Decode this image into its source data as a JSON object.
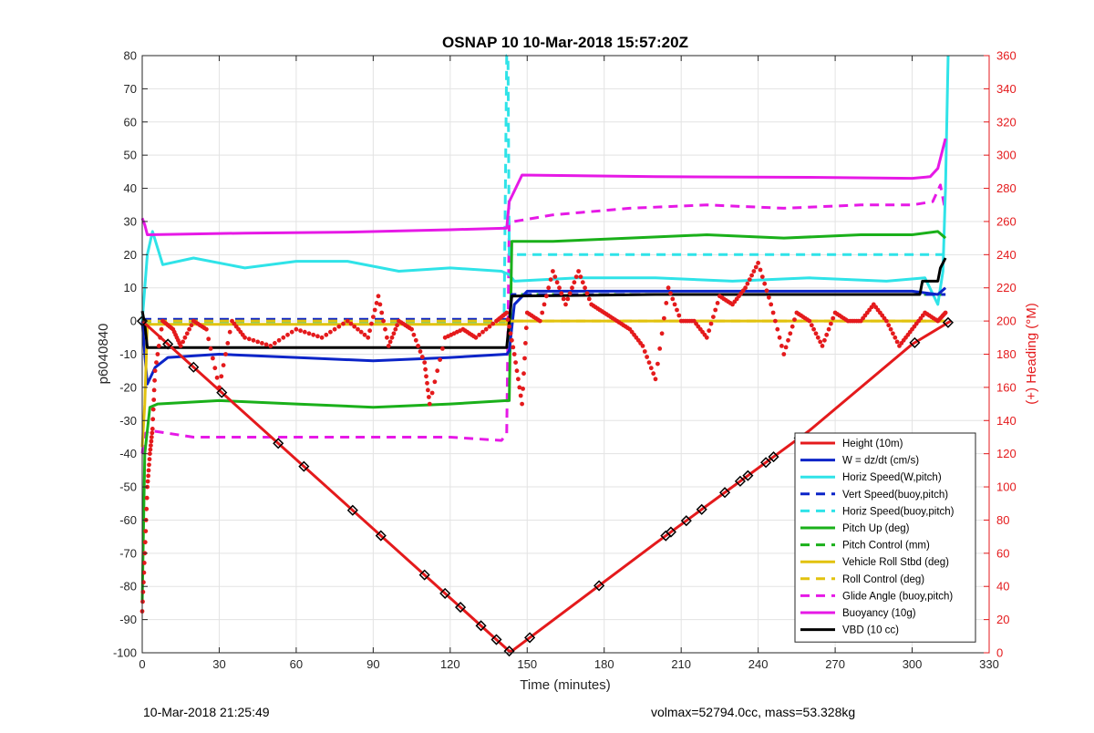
{
  "chart_data": {
    "type": "line",
    "title": "OSNAP 10 10-Mar-2018 15:57:20Z",
    "xlabel": "Time (minutes)",
    "ylabel": "p6040840",
    "y2label": "(+) Heading (°M)",
    "xlim": [
      0,
      330
    ],
    "ylim": [
      -100,
      80
    ],
    "y2lim": [
      0,
      360
    ],
    "xticks": [
      0,
      30,
      60,
      90,
      120,
      150,
      180,
      210,
      240,
      270,
      300,
      330
    ],
    "yticks": [
      -100,
      -90,
      -80,
      -70,
      -60,
      -50,
      -40,
      -30,
      -20,
      -10,
      0,
      10,
      20,
      30,
      40,
      50,
      60,
      70,
      80
    ],
    "y2ticks": [
      0,
      20,
      40,
      60,
      80,
      100,
      120,
      140,
      160,
      180,
      200,
      220,
      240,
      260,
      280,
      300,
      320,
      340,
      360
    ],
    "grid": true,
    "legend_position": "bottom-right",
    "series": [
      {
        "name": "Height (10m)",
        "color": "#e41a1c",
        "style": "solid",
        "x": [
          0,
          143,
          144,
          200,
          260,
          300,
          315
        ],
        "y": [
          0,
          -99.5,
          -99.5,
          -67,
          -33,
          -7,
          0
        ]
      },
      {
        "name": "W = dz/dt (cm/s)",
        "color": "#0b24c8",
        "style": "solid",
        "x": [
          0,
          1,
          2,
          5,
          10,
          30,
          60,
          90,
          120,
          142,
          143,
          145,
          150,
          170,
          200,
          240,
          280,
          300,
          310,
          313
        ],
        "y": [
          0,
          -10,
          -19,
          -14,
          -11,
          -10,
          -11,
          -12,
          -11,
          -10,
          -9,
          5,
          9,
          9,
          9,
          9,
          9,
          9,
          8,
          10
        ]
      },
      {
        "name": "Horiz Speed(W,pitch)",
        "color": "#2fe3e8",
        "style": "solid",
        "x": [
          0,
          2,
          4,
          8,
          20,
          40,
          60,
          80,
          100,
          120,
          140,
          143,
          145,
          170,
          200,
          230,
          260,
          290,
          305,
          310,
          312,
          313,
          314
        ],
        "y": [
          0,
          20,
          27,
          17,
          19,
          16,
          18,
          18,
          15,
          16,
          15,
          14,
          12,
          13,
          13,
          12,
          13,
          12,
          13,
          5,
          15,
          40,
          80
        ]
      },
      {
        "name": "Vert Speed(buoy,pitch)",
        "color": "#0b24c8",
        "style": "dashed",
        "x": [
          0,
          143,
          144,
          313
        ],
        "y": [
          0.5,
          0.5,
          8,
          8
        ]
      },
      {
        "name": "Horiz Speed(buoy,pitch)",
        "color": "#2fe3e8",
        "style": "dashed",
        "x": [
          0,
          141,
          142,
          142.5,
          143,
          313
        ],
        "y": [
          -0.5,
          -0.5,
          80,
          80,
          20,
          20
        ]
      },
      {
        "name": "Pitch Up (deg)",
        "color": "#1ab01a",
        "style": "solid",
        "x": [
          0,
          1,
          3,
          6,
          30,
          60,
          90,
          120,
          142,
          143,
          144,
          160,
          190,
          220,
          250,
          280,
          300,
          310,
          313
        ],
        "y": [
          -85,
          -40,
          -26,
          -25,
          -24,
          -25,
          -26,
          -25,
          -24,
          -24,
          24,
          24,
          25,
          26,
          25,
          26,
          26,
          27,
          25
        ]
      },
      {
        "name": "Pitch Control (mm)",
        "color": "#1ab01a",
        "style": "dashed",
        "x": [
          0,
          143,
          144,
          313
        ],
        "y": [
          0,
          0,
          8,
          8
        ]
      },
      {
        "name": "Vehicle Roll Stbd (deg)",
        "color": "#e2c20e",
        "style": "solid",
        "x": [
          0,
          1,
          2,
          5,
          15,
          30,
          60,
          90,
          120,
          142,
          143,
          150,
          180,
          210,
          240,
          270,
          300,
          313
        ],
        "y": [
          -38,
          -25,
          -1,
          -1,
          -1,
          -1,
          -1,
          -1,
          -1,
          -1,
          0,
          0,
          0,
          0,
          0,
          0,
          0,
          0
        ]
      },
      {
        "name": "Roll Control (deg)",
        "color": "#e2c20e",
        "style": "dashed",
        "x": [
          0,
          143,
          313
        ],
        "y": [
          0,
          0,
          0
        ]
      },
      {
        "name": "Glide Angle (buoy,pitch)",
        "color": "#e619e6",
        "style": "dashed",
        "x": [
          0,
          1,
          3,
          20,
          40,
          60,
          90,
          120,
          140,
          142,
          143,
          145,
          160,
          190,
          220,
          250,
          280,
          300,
          308,
          311,
          313
        ],
        "y": [
          -40,
          -34,
          -33,
          -35,
          -35,
          -35,
          -35,
          -35,
          -36,
          -34,
          30,
          30,
          32,
          34,
          35,
          34,
          35,
          35,
          36,
          41,
          33
        ]
      },
      {
        "name": "Buoyancy (10g)",
        "color": "#e619e6",
        "style": "solid",
        "x": [
          0,
          1,
          2,
          40,
          80,
          120,
          142,
          143,
          148,
          200,
          260,
          300,
          307,
          310,
          312,
          313
        ],
        "y": [
          31,
          29,
          26,
          26.5,
          26.8,
          27.5,
          28,
          36,
          44,
          43.5,
          43.3,
          43,
          43.5,
          46,
          52,
          55
        ]
      },
      {
        "name": "VBD (10 cc)",
        "color": "#000000",
        "style": "solid",
        "x": [
          0,
          1,
          2,
          20,
          60,
          100,
          140,
          142,
          143,
          144,
          200,
          250,
          280,
          303,
          304,
          310,
          311,
          313
        ],
        "y": [
          3,
          -1,
          -8,
          -8,
          -8,
          -8,
          -8,
          -8,
          0,
          7.5,
          8,
          8,
          8,
          8,
          12,
          12,
          16,
          19
        ]
      }
    ],
    "heading_series": {
      "name": "(+) Heading (°M)",
      "color": "#e41a1c",
      "style": "dots",
      "axis": "right",
      "x": [
        0,
        1,
        2,
        3,
        4,
        5,
        8,
        12,
        15,
        20,
        25,
        30,
        35,
        40,
        50,
        60,
        70,
        80,
        88,
        92,
        96,
        100,
        105,
        110,
        112,
        118,
        125,
        130,
        138,
        142,
        145,
        148,
        150,
        155,
        160,
        165,
        170,
        175,
        180,
        185,
        190,
        195,
        200,
        205,
        210,
        215,
        220,
        225,
        230,
        235,
        240,
        245,
        250,
        255,
        260,
        265,
        270,
        275,
        280,
        285,
        290,
        295,
        300,
        305,
        310,
        313
      ],
      "y": [
        25,
        60,
        100,
        120,
        135,
        170,
        200,
        195,
        185,
        200,
        195,
        160,
        200,
        190,
        185,
        195,
        190,
        200,
        190,
        215,
        185,
        200,
        195,
        175,
        150,
        190,
        195,
        190,
        200,
        205,
        180,
        150,
        205,
        200,
        230,
        210,
        230,
        210,
        205,
        200,
        195,
        185,
        165,
        220,
        200,
        200,
        190,
        215,
        210,
        220,
        235,
        210,
        180,
        205,
        200,
        185,
        205,
        200,
        200,
        210,
        200,
        185,
        195,
        205,
        200,
        205
      ]
    }
  },
  "footer": {
    "left": "10-Mar-2018 21:25:49",
    "right": "volmax=52794.0cc, mass=53.328kg"
  }
}
